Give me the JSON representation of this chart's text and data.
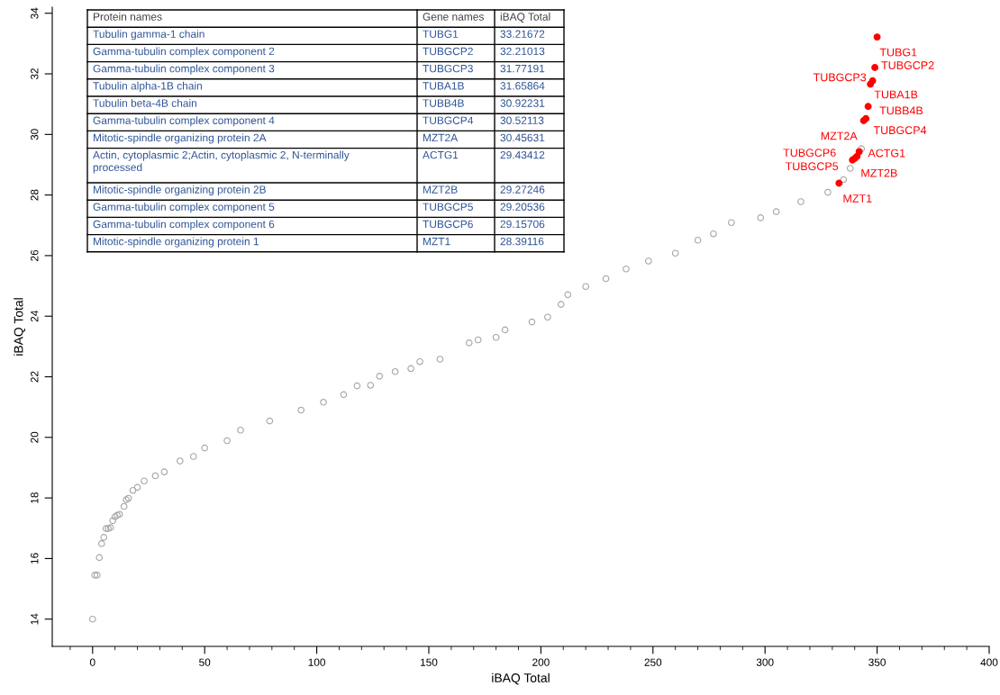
{
  "chart_data": {
    "type": "scatter",
    "xlabel": "iBAQ Total",
    "ylabel": "iBAQ Total",
    "xlim": [
      -18,
      400
    ],
    "ylim": [
      13.1,
      34.2
    ],
    "xticks": [
      {
        "value": -10,
        "label": null
      },
      0,
      {
        "value": 10,
        "label": null
      },
      {
        "value": 20,
        "label": null
      },
      {
        "value": 30,
        "label": null
      },
      {
        "value": 40,
        "label": null
      },
      50,
      {
        "value": 60,
        "label": null
      },
      {
        "value": 70,
        "label": null
      },
      {
        "value": 80,
        "label": null
      },
      {
        "value": 90,
        "label": null
      },
      100,
      {
        "value": 110,
        "label": null
      },
      {
        "value": 120,
        "label": null
      },
      {
        "value": 130,
        "label": null
      },
      {
        "value": 140,
        "label": null
      },
      150,
      {
        "value": 160,
        "label": null
      },
      {
        "value": 170,
        "label": null
      },
      {
        "value": 180,
        "label": null
      },
      {
        "value": 190,
        "label": null
      },
      200,
      {
        "value": 210,
        "label": null
      },
      {
        "value": 220,
        "label": null
      },
      {
        "value": 230,
        "label": null
      },
      {
        "value": 240,
        "label": null
      },
      250,
      {
        "value": 260,
        "label": null
      },
      {
        "value": 270,
        "label": null
      },
      {
        "value": 280,
        "label": null
      },
      {
        "value": 290,
        "label": null
      },
      300,
      {
        "value": 310,
        "label": null
      },
      {
        "value": 320,
        "label": null
      },
      {
        "value": 330,
        "label": null
      },
      {
        "value": 340,
        "label": null
      },
      350,
      {
        "value": 360,
        "label": null
      },
      {
        "value": 370,
        "label": null
      },
      {
        "value": 380,
        "label": null
      },
      {
        "value": 390,
        "label": null
      },
      400
    ],
    "yticks": [
      14,
      16,
      18,
      20,
      22,
      24,
      26,
      28,
      30,
      32,
      34
    ],
    "marker": "circle",
    "series": [
      {
        "color": "#a6a6a6",
        "x": [
          0,
          1,
          2,
          3,
          4,
          5,
          6,
          7,
          8,
          9,
          10,
          11,
          12,
          14,
          15,
          16,
          18,
          20,
          23,
          28,
          32,
          39,
          45,
          50,
          60,
          66,
          79,
          93,
          103,
          112,
          118,
          124,
          128,
          135,
          142,
          146,
          155,
          168,
          172,
          180,
          184,
          196,
          203,
          209,
          212,
          220,
          229,
          238,
          248,
          260,
          270,
          277,
          285,
          298,
          305,
          316,
          328,
          335,
          338,
          343
        ],
        "values": [
          14.0,
          15.45,
          15.45,
          16.03,
          16.49,
          16.7,
          16.99,
          16.99,
          17.02,
          17.25,
          17.38,
          17.43,
          17.46,
          17.72,
          17.94,
          17.99,
          18.25,
          18.35,
          18.56,
          18.73,
          18.86,
          19.22,
          19.37,
          19.65,
          19.89,
          20.24,
          20.54,
          20.9,
          21.16,
          21.41,
          21.7,
          21.72,
          22.02,
          22.17,
          22.27,
          22.5,
          22.58,
          23.12,
          23.22,
          23.3,
          23.55,
          23.81,
          23.97,
          24.39,
          24.71,
          24.98,
          25.24,
          25.56,
          25.82,
          26.08,
          26.51,
          26.72,
          27.09,
          27.25,
          27.45,
          27.78,
          28.09,
          28.51,
          28.88,
          29.53
        ]
      },
      {
        "color": "#ff0000",
        "x": [
          333,
          339,
          340,
          341,
          342,
          344,
          345,
          346,
          347,
          348,
          349,
          350
        ],
        "values": [
          28.39116,
          29.15706,
          29.20536,
          29.27246,
          29.43412,
          30.45631,
          30.52113,
          30.92231,
          31.65864,
          31.77191,
          32.21013,
          33.21672
        ]
      }
    ],
    "annotations": [
      "Protein names",
      "Gene names",
      "iBAQ Total",
      "Tubulin gamma-1 chain",
      "TUBG1",
      "33.21672",
      "Gamma-tubulin complex component 2",
      "TUBGCP2",
      "32.21013",
      "Gamma-tubulin complex component 3",
      "TUBGCP3",
      "31.77191",
      "Tubulin alpha-1B chain",
      "TUBA1B",
      "31.65864",
      "Tubulin beta-4B chain",
      "TUBB4B",
      "30.92231",
      "Gamma-tubulin complex component 4",
      "TUBGCP4",
      "30.52113",
      "Mitotic-spindle organizing protein 2A",
      "MZT2A",
      "30.45631",
      "Actin, cytoplasmic 2;Actin, cytoplasmic 2, N-terminally\nprocessed",
      "ACTG1",
      "29.43412",
      "Mitotic-spindle organizing protein 2B",
      "MZT2B",
      "29.27246",
      "Gamma-tubulin complex component 5",
      "TUBGCP5",
      "29.20536",
      "Gamma-tubulin complex component 6",
      "TUBGCP6",
      "29.15706",
      "Mitotic-spindle organizing protein 1",
      "MZT1",
      "28.39116",
      {
        "text": "TUBG1",
        "x": 350,
        "y": 33.21672
      },
      {
        "text": "TUBGCP2",
        "x": 349,
        "y": 32.21013
      },
      {
        "text": "TUBGCP3",
        "x": 348,
        "y": 31.77191
      },
      {
        "text": "TUBA1B",
        "x": 347,
        "y": 31.65864
      },
      {
        "text": "TUBB4B",
        "x": 346,
        "y": 30.92231
      },
      {
        "text": "TUBGCP4",
        "x": 345,
        "y": 30.52113
      },
      {
        "text": "MZT2A",
        "x": 344,
        "y": 30.45631
      },
      {
        "text": "ACTG1",
        "x": 342,
        "y": 29.43412
      },
      {
        "text": "MZT2B",
        "x": 341,
        "y": 29.27246
      },
      {
        "text": "TUBGCP5",
        "x": 340,
        "y": 29.20536
      },
      {
        "text": "TUBGCP6",
        "x": 339,
        "y": 29.15706
      },
      {
        "text": "MZT1",
        "x": 333,
        "y": 28.39116
      }
    ]
  }
}
